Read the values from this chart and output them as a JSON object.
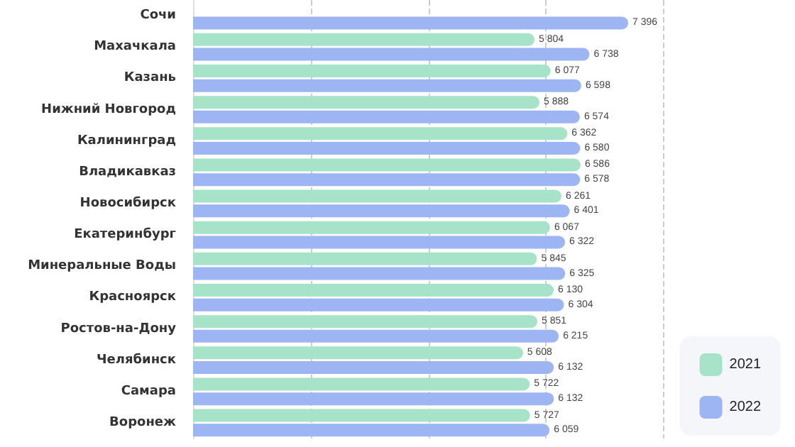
{
  "chart_data": {
    "type": "bar",
    "orientation": "horizontal",
    "categories": [
      "Сочи",
      "Махачкала",
      "Казань",
      "Нижний Новгород",
      "Калининград",
      "Владикавказ",
      "Новосибирск",
      "Екатеринбург",
      "Минеральные Воды",
      "Красноярск",
      "Ростов-на-Дону",
      "Челябинск",
      "Самара",
      "Воронеж"
    ],
    "series": [
      {
        "name": "2021",
        "color": "#a6e3c8",
        "values": [
          null,
          5804,
          6077,
          5888,
          6362,
          6586,
          6261,
          6067,
          5845,
          6130,
          5851,
          5608,
          5722,
          5727
        ]
      },
      {
        "name": "2022",
        "color": "#9db6f3",
        "values": [
          7396,
          6738,
          6598,
          6574,
          6580,
          6578,
          6401,
          6322,
          6325,
          6304,
          6215,
          6132,
          6132,
          6059
        ]
      }
    ],
    "xlim": [
      0,
      9000
    ],
    "xticks": [
      {
        "value": 0,
        "label": null
      },
      {
        "value": 2000,
        "label": null
      },
      {
        "value": 4000,
        "label": null
      },
      {
        "value": 6000,
        "label": null
      },
      {
        "value": 8000,
        "label": null
      }
    ],
    "tick_labels": "y",
    "grid": "x",
    "data_labels": true,
    "legend": "bottom right"
  }
}
